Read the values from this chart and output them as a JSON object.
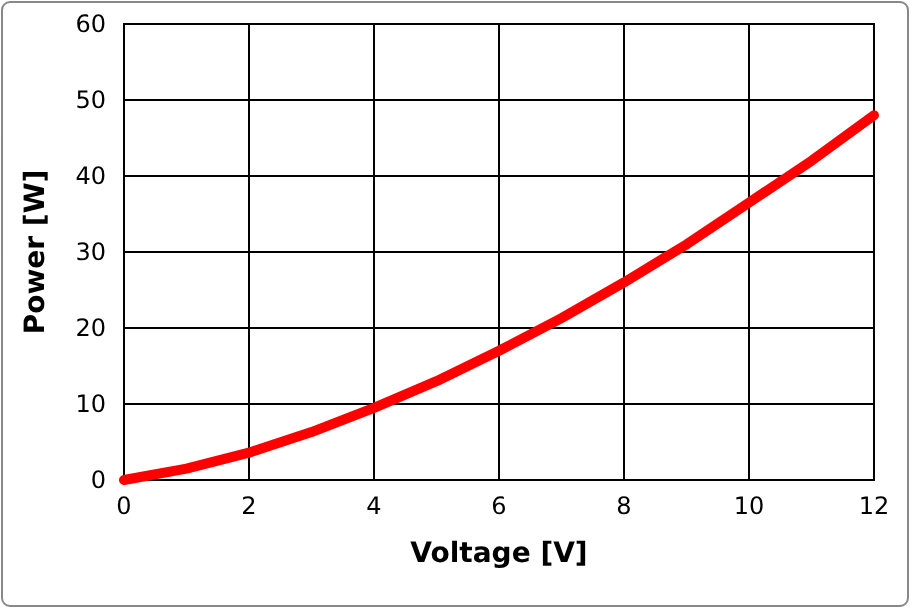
{
  "chart_data": {
    "type": "line",
    "xlabel": "Voltage [V]",
    "ylabel": "Power [W]",
    "x": [
      0,
      1,
      2,
      3,
      4,
      5,
      6,
      7,
      8,
      9,
      10,
      11,
      12
    ],
    "series": [
      {
        "color": "#ff0000",
        "values": [
          0,
          1.5,
          3.6,
          6.3,
          9.5,
          13,
          17,
          21.3,
          26,
          31,
          36.5,
          42,
          48
        ]
      }
    ],
    "xlim": [
      0,
      12
    ],
    "xticks": [
      0,
      2,
      4,
      6,
      8,
      10,
      12
    ],
    "ylim": [
      0,
      60
    ],
    "yticks": [
      0,
      10,
      20,
      30,
      40,
      50,
      60
    ],
    "grid": true,
    "marker": "none",
    "line_style": "solid"
  }
}
